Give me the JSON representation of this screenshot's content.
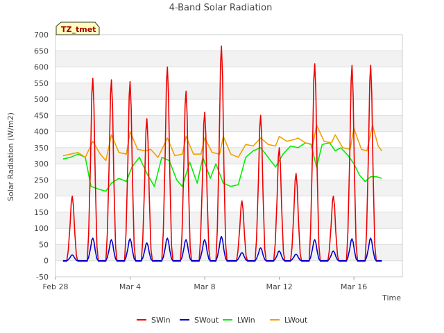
{
  "chart_data": {
    "type": "line",
    "title": "4-Band Solar Radiation",
    "xlabel": "Time",
    "ylabel": "Solar Radiation (W/m2)",
    "ylim": [
      -50,
      700
    ],
    "yticks": [
      -50,
      0,
      50,
      100,
      150,
      200,
      250,
      300,
      350,
      400,
      450,
      500,
      550,
      600,
      650,
      700
    ],
    "xlim": [
      0,
      18.6
    ],
    "xticks": [
      {
        "value": 0,
        "label": "Feb 28"
      },
      {
        "value": 4,
        "label": "Mar 4"
      },
      {
        "value": 8,
        "label": "Mar 8"
      },
      {
        "value": 12,
        "label": "Mar 12"
      },
      {
        "value": 16,
        "label": "Mar 16"
      }
    ],
    "badge": "TZ_tmet",
    "legend_position": "bottom",
    "series": [
      {
        "name": "SWin",
        "color": "#ee0000",
        "peaks": [
          [
            0.9,
            200
          ],
          [
            2.0,
            565
          ],
          [
            3.0,
            560
          ],
          [
            4.0,
            555
          ],
          [
            4.9,
            440
          ],
          [
            6.0,
            600
          ],
          [
            7.0,
            525
          ],
          [
            8.0,
            460
          ],
          [
            8.9,
            665
          ],
          [
            10.0,
            185
          ],
          [
            11.0,
            450
          ],
          [
            12.0,
            350
          ],
          [
            12.9,
            270
          ],
          [
            13.9,
            610
          ],
          [
            14.9,
            200
          ],
          [
            15.9,
            605
          ],
          [
            16.9,
            605
          ]
        ],
        "night": -2
      },
      {
        "name": "SWout",
        "color": "#0000cc",
        "peaks": [
          [
            0.9,
            18
          ],
          [
            2.0,
            70
          ],
          [
            3.0,
            65
          ],
          [
            4.0,
            68
          ],
          [
            4.9,
            55
          ],
          [
            6.0,
            70
          ],
          [
            7.0,
            65
          ],
          [
            8.0,
            65
          ],
          [
            8.9,
            75
          ],
          [
            10.0,
            25
          ],
          [
            11.0,
            40
          ],
          [
            12.0,
            30
          ],
          [
            12.9,
            20
          ],
          [
            13.9,
            65
          ],
          [
            14.9,
            30
          ],
          [
            15.9,
            68
          ],
          [
            16.9,
            70
          ]
        ],
        "night": 0
      },
      {
        "name": "LWin",
        "color": "#00ee00",
        "points": [
          [
            0.4,
            315
          ],
          [
            0.8,
            320
          ],
          [
            1.2,
            330
          ],
          [
            1.6,
            320
          ],
          [
            1.9,
            230
          ],
          [
            2.4,
            220
          ],
          [
            2.7,
            215
          ],
          [
            3.0,
            240
          ],
          [
            3.4,
            255
          ],
          [
            3.8,
            245
          ],
          [
            4.1,
            290
          ],
          [
            4.5,
            320
          ],
          [
            4.9,
            270
          ],
          [
            5.3,
            230
          ],
          [
            5.7,
            320
          ],
          [
            6.1,
            310
          ],
          [
            6.5,
            250
          ],
          [
            6.8,
            230
          ],
          [
            7.2,
            305
          ],
          [
            7.6,
            240
          ],
          [
            7.9,
            320
          ],
          [
            8.3,
            255
          ],
          [
            8.6,
            300
          ],
          [
            9.0,
            240
          ],
          [
            9.4,
            230
          ],
          [
            9.8,
            235
          ],
          [
            10.2,
            320
          ],
          [
            10.6,
            340
          ],
          [
            11.0,
            350
          ],
          [
            11.4,
            320
          ],
          [
            11.8,
            290
          ],
          [
            12.2,
            330
          ],
          [
            12.6,
            355
          ],
          [
            13.0,
            350
          ],
          [
            13.4,
            365
          ],
          [
            13.7,
            360
          ],
          [
            14.0,
            290
          ],
          [
            14.3,
            360
          ],
          [
            14.7,
            365
          ],
          [
            15.0,
            340
          ],
          [
            15.3,
            350
          ],
          [
            15.7,
            325
          ],
          [
            16.0,
            300
          ],
          [
            16.3,
            265
          ],
          [
            16.6,
            245
          ],
          [
            16.9,
            260
          ],
          [
            17.2,
            260
          ],
          [
            17.5,
            255
          ]
        ]
      },
      {
        "name": "LWout",
        "color": "#f0a000",
        "points": [
          [
            0.4,
            325
          ],
          [
            0.8,
            330
          ],
          [
            1.2,
            335
          ],
          [
            1.6,
            320
          ],
          [
            2.0,
            370
          ],
          [
            2.4,
            330
          ],
          [
            2.7,
            310
          ],
          [
            3.0,
            390
          ],
          [
            3.4,
            335
          ],
          [
            3.8,
            330
          ],
          [
            4.0,
            400
          ],
          [
            4.4,
            345
          ],
          [
            4.8,
            340
          ],
          [
            5.1,
            345
          ],
          [
            5.5,
            320
          ],
          [
            6.0,
            380
          ],
          [
            6.4,
            325
          ],
          [
            6.8,
            330
          ],
          [
            7.0,
            385
          ],
          [
            7.4,
            330
          ],
          [
            7.8,
            330
          ],
          [
            8.0,
            380
          ],
          [
            8.4,
            335
          ],
          [
            8.8,
            330
          ],
          [
            9.0,
            385
          ],
          [
            9.4,
            330
          ],
          [
            9.8,
            320
          ],
          [
            10.2,
            360
          ],
          [
            10.6,
            355
          ],
          [
            11.0,
            380
          ],
          [
            11.4,
            360
          ],
          [
            11.8,
            355
          ],
          [
            12.0,
            385
          ],
          [
            12.4,
            370
          ],
          [
            12.8,
            375
          ],
          [
            13.0,
            380
          ],
          [
            13.4,
            365
          ],
          [
            13.8,
            360
          ],
          [
            14.0,
            420
          ],
          [
            14.4,
            370
          ],
          [
            14.8,
            365
          ],
          [
            15.0,
            390
          ],
          [
            15.4,
            350
          ],
          [
            15.8,
            345
          ],
          [
            16.0,
            410
          ],
          [
            16.4,
            345
          ],
          [
            16.7,
            340
          ],
          [
            17.0,
            420
          ],
          [
            17.3,
            355
          ],
          [
            17.5,
            340
          ]
        ]
      }
    ]
  }
}
